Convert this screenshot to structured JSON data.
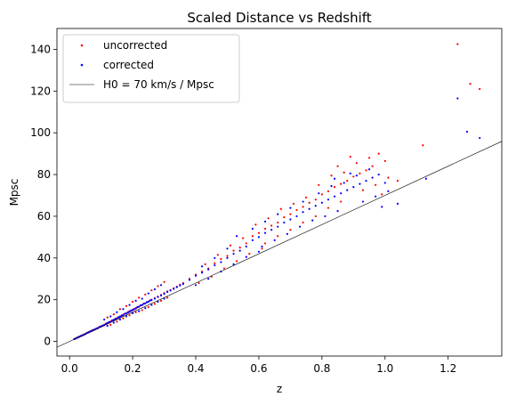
{
  "chart_data": {
    "type": "scatter",
    "title": "Scaled Distance vs Redshift",
    "xlabel": "z",
    "ylabel": "Mpsc",
    "xlim": [
      -0.04,
      1.37
    ],
    "ylim": [
      -7,
      150
    ],
    "xticks": [
      0.0,
      0.2,
      0.4,
      0.6,
      0.8,
      1.0,
      1.2
    ],
    "yticks": [
      0,
      20,
      40,
      60,
      80,
      100,
      120,
      140
    ],
    "grid": false,
    "legend_position": "top-left",
    "fit_line": {
      "name": "H0 = 70 km/s / Mpsc",
      "slope": 70,
      "intercept": 0,
      "color": "#000000"
    },
    "series": [
      {
        "name": "uncorrected",
        "color": "#ff0000",
        "points": [
          [
            0.015,
            1.2
          ],
          [
            0.02,
            1.5
          ],
          [
            0.025,
            1.8
          ],
          [
            0.03,
            2.3
          ],
          [
            0.035,
            2.5
          ],
          [
            0.04,
            3.0
          ],
          [
            0.045,
            3.2
          ],
          [
            0.05,
            3.6
          ],
          [
            0.055,
            4.0
          ],
          [
            0.06,
            4.5
          ],
          [
            0.065,
            4.6
          ],
          [
            0.07,
            5.2
          ],
          [
            0.075,
            5.3
          ],
          [
            0.08,
            5.8
          ],
          [
            0.085,
            6.1
          ],
          [
            0.09,
            6.5
          ],
          [
            0.095,
            6.9
          ],
          [
            0.1,
            7.3
          ],
          [
            0.105,
            7.5
          ],
          [
            0.11,
            8.0
          ],
          [
            0.115,
            8.3
          ],
          [
            0.12,
            8.9
          ],
          [
            0.125,
            9.0
          ],
          [
            0.13,
            9.6
          ],
          [
            0.135,
            10.0
          ],
          [
            0.14,
            10.4
          ],
          [
            0.145,
            10.6
          ],
          [
            0.15,
            11.2
          ],
          [
            0.155,
            11.5
          ],
          [
            0.16,
            12.0
          ],
          [
            0.165,
            12.2
          ],
          [
            0.17,
            12.8
          ],
          [
            0.175,
            13.2
          ],
          [
            0.18,
            13.5
          ],
          [
            0.185,
            13.8
          ],
          [
            0.19,
            14.5
          ],
          [
            0.195,
            14.6
          ],
          [
            0.2,
            15.2
          ],
          [
            0.205,
            15.4
          ],
          [
            0.21,
            16.0
          ],
          [
            0.215,
            16.3
          ],
          [
            0.22,
            16.7
          ],
          [
            0.225,
            17.2
          ],
          [
            0.23,
            17.5
          ],
          [
            0.235,
            18.0
          ],
          [
            0.24,
            18.3
          ],
          [
            0.245,
            18.9
          ],
          [
            0.25,
            19.1
          ],
          [
            0.255,
            19.7
          ],
          [
            0.26,
            20.0
          ],
          [
            0.27,
            20.8
          ],
          [
            0.28,
            21.5
          ],
          [
            0.29,
            22.3
          ],
          [
            0.3,
            23.2
          ],
          [
            0.31,
            24.0
          ],
          [
            0.32,
            24.6
          ],
          [
            0.33,
            25.5
          ],
          [
            0.34,
            26.3
          ],
          [
            0.35,
            27.2
          ],
          [
            0.36,
            28.0
          ],
          [
            0.12,
            11.5
          ],
          [
            0.14,
            13.0
          ],
          [
            0.16,
            15.5
          ],
          [
            0.18,
            17.0
          ],
          [
            0.2,
            19.0
          ],
          [
            0.22,
            21.0
          ],
          [
            0.24,
            22.5
          ],
          [
            0.26,
            24.5
          ],
          [
            0.28,
            26.5
          ],
          [
            0.3,
            28.5
          ],
          [
            0.13,
            8.0
          ],
          [
            0.15,
            9.5
          ],
          [
            0.17,
            11.0
          ],
          [
            0.19,
            12.5
          ],
          [
            0.21,
            14.0
          ],
          [
            0.23,
            15.0
          ],
          [
            0.25,
            16.5
          ],
          [
            0.27,
            18.0
          ],
          [
            0.29,
            19.5
          ],
          [
            0.31,
            21.0
          ],
          [
            0.38,
            30.0
          ],
          [
            0.4,
            32.0
          ],
          [
            0.42,
            33.5
          ],
          [
            0.44,
            35.0
          ],
          [
            0.46,
            37.5
          ],
          [
            0.48,
            39.5
          ],
          [
            0.5,
            41.0
          ],
          [
            0.52,
            43.5
          ],
          [
            0.54,
            45.0
          ],
          [
            0.56,
            47.0
          ],
          [
            0.41,
            28.0
          ],
          [
            0.45,
            31.0
          ],
          [
            0.49,
            35.0
          ],
          [
            0.53,
            38.5
          ],
          [
            0.57,
            42.0
          ],
          [
            0.61,
            44.5
          ],
          [
            0.43,
            37.0
          ],
          [
            0.47,
            41.5
          ],
          [
            0.51,
            46.0
          ],
          [
            0.55,
            49.5
          ],
          [
            0.58,
            50.5
          ],
          [
            0.6,
            52.0
          ],
          [
            0.62,
            54.0
          ],
          [
            0.64,
            55.5
          ],
          [
            0.66,
            57.0
          ],
          [
            0.68,
            59.5
          ],
          [
            0.7,
            61.0
          ],
          [
            0.72,
            63.0
          ],
          [
            0.74,
            64.5
          ],
          [
            0.76,
            66.5
          ],
          [
            0.59,
            56.0
          ],
          [
            0.63,
            59.0
          ],
          [
            0.67,
            63.5
          ],
          [
            0.71,
            66.0
          ],
          [
            0.75,
            69.0
          ],
          [
            0.62,
            47.0
          ],
          [
            0.66,
            50.5
          ],
          [
            0.7,
            53.5
          ],
          [
            0.74,
            57.0
          ],
          [
            0.78,
            60.0
          ],
          [
            0.78,
            68.0
          ],
          [
            0.8,
            70.5
          ],
          [
            0.82,
            72.0
          ],
          [
            0.84,
            74.0
          ],
          [
            0.86,
            75.5
          ],
          [
            0.88,
            77.0
          ],
          [
            0.9,
            79.0
          ],
          [
            0.92,
            80.5
          ],
          [
            0.94,
            82.0
          ],
          [
            0.96,
            84.0
          ],
          [
            0.79,
            75.0
          ],
          [
            0.83,
            79.5
          ],
          [
            0.87,
            81.0
          ],
          [
            0.91,
            85.5
          ],
          [
            0.95,
            88.0
          ],
          [
            0.98,
            90.0
          ],
          [
            1.0,
            86.5
          ],
          [
            0.82,
            64.0
          ],
          [
            0.86,
            67.0
          ],
          [
            0.93,
            72.5
          ],
          [
            0.97,
            75.0
          ],
          [
            1.01,
            78.5
          ],
          [
            1.04,
            77.0
          ],
          [
            0.99,
            70.5
          ],
          [
            0.85,
            84.0
          ],
          [
            0.89,
            88.5
          ],
          [
            1.12,
            94.0
          ],
          [
            1.23,
            142.5
          ],
          [
            1.27,
            123.5
          ],
          [
            1.3,
            121.0
          ]
        ]
      },
      {
        "name": "corrected",
        "color": "#0000ff",
        "points": [
          [
            0.015,
            1.1
          ],
          [
            0.02,
            1.4
          ],
          [
            0.025,
            1.9
          ],
          [
            0.03,
            2.1
          ],
          [
            0.035,
            2.6
          ],
          [
            0.04,
            2.8
          ],
          [
            0.045,
            3.3
          ],
          [
            0.05,
            3.5
          ],
          [
            0.055,
            4.1
          ],
          [
            0.06,
            4.3
          ],
          [
            0.065,
            4.8
          ],
          [
            0.07,
            5.0
          ],
          [
            0.075,
            5.5
          ],
          [
            0.08,
            5.7
          ],
          [
            0.085,
            6.2
          ],
          [
            0.09,
            6.4
          ],
          [
            0.095,
            7.0
          ],
          [
            0.1,
            7.1
          ],
          [
            0.105,
            7.6
          ],
          [
            0.11,
            7.8
          ],
          [
            0.115,
            8.5
          ],
          [
            0.12,
            8.7
          ],
          [
            0.125,
            9.2
          ],
          [
            0.13,
            9.4
          ],
          [
            0.135,
            10.1
          ],
          [
            0.14,
            10.2
          ],
          [
            0.145,
            10.8
          ],
          [
            0.15,
            11.0
          ],
          [
            0.155,
            11.6
          ],
          [
            0.16,
            11.8
          ],
          [
            0.165,
            12.4
          ],
          [
            0.17,
            12.6
          ],
          [
            0.175,
            13.3
          ],
          [
            0.18,
            13.4
          ],
          [
            0.185,
            14.0
          ],
          [
            0.19,
            14.2
          ],
          [
            0.195,
            14.8
          ],
          [
            0.2,
            15.0
          ],
          [
            0.205,
            15.5
          ],
          [
            0.21,
            15.8
          ],
          [
            0.215,
            16.5
          ],
          [
            0.22,
            16.6
          ],
          [
            0.225,
            17.3
          ],
          [
            0.23,
            17.4
          ],
          [
            0.235,
            18.1
          ],
          [
            0.24,
            18.2
          ],
          [
            0.245,
            18.8
          ],
          [
            0.25,
            19.0
          ],
          [
            0.255,
            19.6
          ],
          [
            0.26,
            19.8
          ],
          [
            0.27,
            20.5
          ],
          [
            0.28,
            21.3
          ],
          [
            0.29,
            22.0
          ],
          [
            0.3,
            22.8
          ],
          [
            0.31,
            23.7
          ],
          [
            0.32,
            24.4
          ],
          [
            0.33,
            25.2
          ],
          [
            0.34,
            26.0
          ],
          [
            0.35,
            26.8
          ],
          [
            0.36,
            27.5
          ],
          [
            0.11,
            10.5
          ],
          [
            0.13,
            12.0
          ],
          [
            0.15,
            14.0
          ],
          [
            0.17,
            15.5
          ],
          [
            0.19,
            17.5
          ],
          [
            0.21,
            19.5
          ],
          [
            0.23,
            20.5
          ],
          [
            0.25,
            23.0
          ],
          [
            0.27,
            25.0
          ],
          [
            0.29,
            27.0
          ],
          [
            0.12,
            7.5
          ],
          [
            0.14,
            9.0
          ],
          [
            0.16,
            10.5
          ],
          [
            0.18,
            12.0
          ],
          [
            0.2,
            13.5
          ],
          [
            0.22,
            14.5
          ],
          [
            0.24,
            16.0
          ],
          [
            0.26,
            17.5
          ],
          [
            0.28,
            19.0
          ],
          [
            0.3,
            20.5
          ],
          [
            0.38,
            29.5
          ],
          [
            0.4,
            31.5
          ],
          [
            0.42,
            33.0
          ],
          [
            0.44,
            34.5
          ],
          [
            0.46,
            36.5
          ],
          [
            0.48,
            38.0
          ],
          [
            0.5,
            40.0
          ],
          [
            0.52,
            42.0
          ],
          [
            0.54,
            43.5
          ],
          [
            0.56,
            45.5
          ],
          [
            0.4,
            27.0
          ],
          [
            0.44,
            30.0
          ],
          [
            0.48,
            33.5
          ],
          [
            0.52,
            37.0
          ],
          [
            0.56,
            40.5
          ],
          [
            0.6,
            43.0
          ],
          [
            0.42,
            36.0
          ],
          [
            0.46,
            40.0
          ],
          [
            0.5,
            44.5
          ],
          [
            0.53,
            50.5
          ],
          [
            0.58,
            48.5
          ],
          [
            0.6,
            50.0
          ],
          [
            0.62,
            52.0
          ],
          [
            0.64,
            53.5
          ],
          [
            0.66,
            55.0
          ],
          [
            0.68,
            57.0
          ],
          [
            0.7,
            58.5
          ],
          [
            0.72,
            60.0
          ],
          [
            0.74,
            62.0
          ],
          [
            0.76,
            63.5
          ],
          [
            0.58,
            54.0
          ],
          [
            0.62,
            57.5
          ],
          [
            0.66,
            61.0
          ],
          [
            0.7,
            64.0
          ],
          [
            0.74,
            67.0
          ],
          [
            0.61,
            45.5
          ],
          [
            0.65,
            48.5
          ],
          [
            0.69,
            51.5
          ],
          [
            0.73,
            55.0
          ],
          [
            0.77,
            58.0
          ],
          [
            0.78,
            65.0
          ],
          [
            0.8,
            66.5
          ],
          [
            0.82,
            68.0
          ],
          [
            0.84,
            69.5
          ],
          [
            0.86,
            71.0
          ],
          [
            0.88,
            72.5
          ],
          [
            0.9,
            74.0
          ],
          [
            0.92,
            75.5
          ],
          [
            0.94,
            77.0
          ],
          [
            0.96,
            78.5
          ],
          [
            0.79,
            71.0
          ],
          [
            0.83,
            74.5
          ],
          [
            0.87,
            76.0
          ],
          [
            0.91,
            79.5
          ],
          [
            0.95,
            82.5
          ],
          [
            0.98,
            80.0
          ],
          [
            1.0,
            76.0
          ],
          [
            0.81,
            60.0
          ],
          [
            0.85,
            62.5
          ],
          [
            0.93,
            67.0
          ],
          [
            0.97,
            69.5
          ],
          [
            1.01,
            72.0
          ],
          [
            1.04,
            66.0
          ],
          [
            0.99,
            64.5
          ],
          [
            0.84,
            78.0
          ],
          [
            0.89,
            80.5
          ],
          [
            1.13,
            78.0
          ],
          [
            1.23,
            116.5
          ],
          [
            1.26,
            100.5
          ],
          [
            1.3,
            97.5
          ]
        ]
      }
    ]
  }
}
